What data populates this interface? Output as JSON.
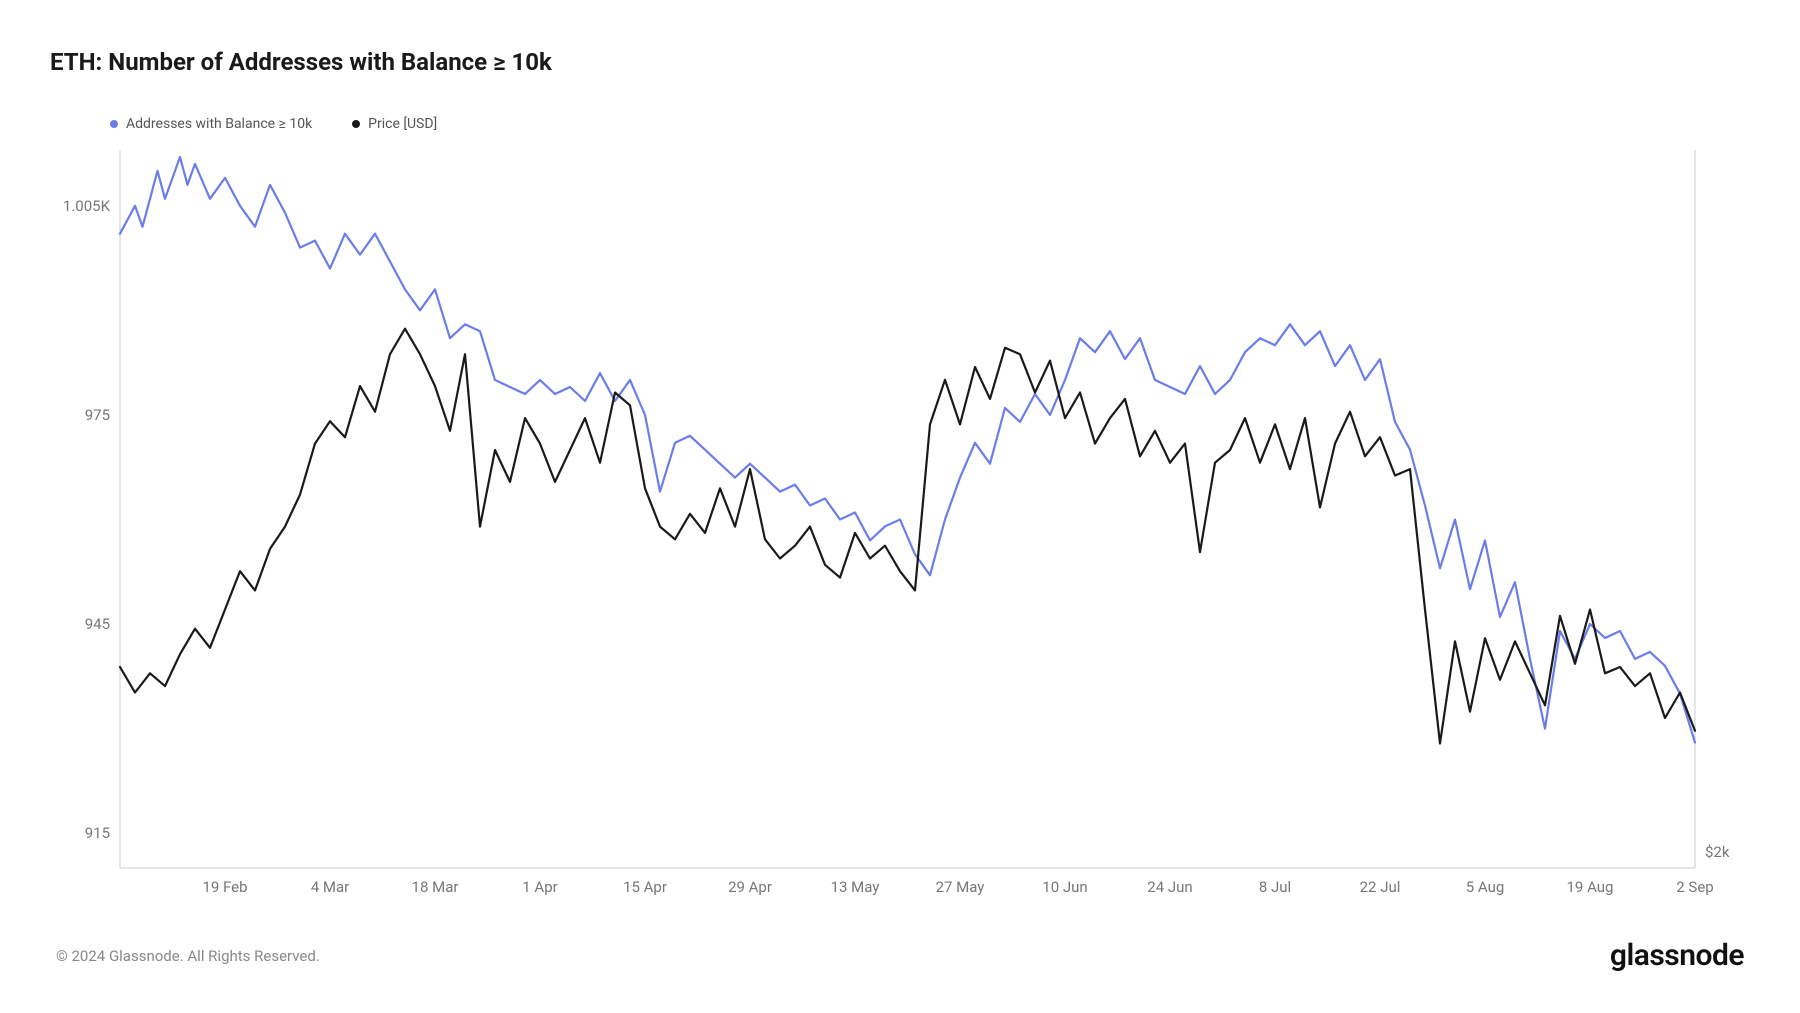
{
  "title": "ETH: Number of Addresses with Balance ≥ 10k",
  "legend": {
    "series1": {
      "label": "Addresses with Balance ≥ 10k",
      "color": "#6b7de8"
    },
    "series2": {
      "label": "Price [USD]",
      "color": "#1a1a1a"
    }
  },
  "chart": {
    "type": "line",
    "background_color": "#ffffff",
    "border_color": "#cccccc",
    "y_left": {
      "min": 910,
      "max": 1013,
      "ticks": [
        915,
        945,
        975,
        1005
      ],
      "tick_labels": [
        "915",
        "945",
        "975",
        "1.005K"
      ]
    },
    "y_right": {
      "min": 1950,
      "max": 4200,
      "ticks": [
        2000
      ],
      "tick_labels": [
        "$2k"
      ]
    },
    "x": {
      "min": 0,
      "max": 210,
      "ticks": [
        14,
        28,
        42,
        56,
        70,
        84,
        98,
        112,
        126,
        140,
        154,
        168,
        182,
        196,
        210
      ],
      "tick_labels": [
        "19 Feb",
        "4 Mar",
        "18 Mar",
        "1 Apr",
        "15 Apr",
        "29 Apr",
        "13 May",
        "27 May",
        "10 Jun",
        "24 Jun",
        "8 Jul",
        "22 Jul",
        "5 Aug",
        "19 Aug",
        "2 Sep"
      ]
    },
    "series1": {
      "color": "#6b7de8",
      "stroke_width": 2.2,
      "data": [
        [
          0,
          1001
        ],
        [
          2,
          1005
        ],
        [
          3,
          1002
        ],
        [
          5,
          1010
        ],
        [
          6,
          1006
        ],
        [
          8,
          1012
        ],
        [
          9,
          1008
        ],
        [
          10,
          1011
        ],
        [
          12,
          1006
        ],
        [
          14,
          1009
        ],
        [
          16,
          1005
        ],
        [
          18,
          1002
        ],
        [
          20,
          1008
        ],
        [
          22,
          1004
        ],
        [
          24,
          999
        ],
        [
          26,
          1000
        ],
        [
          28,
          996
        ],
        [
          30,
          1001
        ],
        [
          32,
          998
        ],
        [
          34,
          1001
        ],
        [
          36,
          997
        ],
        [
          38,
          993
        ],
        [
          40,
          990
        ],
        [
          42,
          993
        ],
        [
          44,
          986
        ],
        [
          46,
          988
        ],
        [
          48,
          987
        ],
        [
          50,
          980
        ],
        [
          52,
          979
        ],
        [
          54,
          978
        ],
        [
          56,
          980
        ],
        [
          58,
          978
        ],
        [
          60,
          979
        ],
        [
          62,
          977
        ],
        [
          64,
          981
        ],
        [
          66,
          977
        ],
        [
          68,
          980
        ],
        [
          70,
          975
        ],
        [
          72,
          964
        ],
        [
          74,
          971
        ],
        [
          76,
          972
        ],
        [
          78,
          970
        ],
        [
          80,
          968
        ],
        [
          82,
          966
        ],
        [
          84,
          968
        ],
        [
          86,
          966
        ],
        [
          88,
          964
        ],
        [
          90,
          965
        ],
        [
          92,
          962
        ],
        [
          94,
          963
        ],
        [
          96,
          960
        ],
        [
          98,
          961
        ],
        [
          100,
          957
        ],
        [
          102,
          959
        ],
        [
          104,
          960
        ],
        [
          106,
          955
        ],
        [
          108,
          952
        ],
        [
          110,
          960
        ],
        [
          112,
          966
        ],
        [
          114,
          971
        ],
        [
          116,
          968
        ],
        [
          118,
          976
        ],
        [
          120,
          974
        ],
        [
          122,
          978
        ],
        [
          124,
          975
        ],
        [
          126,
          980
        ],
        [
          128,
          986
        ],
        [
          130,
          984
        ],
        [
          132,
          987
        ],
        [
          134,
          983
        ],
        [
          136,
          986
        ],
        [
          138,
          980
        ],
        [
          140,
          979
        ],
        [
          142,
          978
        ],
        [
          144,
          982
        ],
        [
          146,
          978
        ],
        [
          148,
          980
        ],
        [
          150,
          984
        ],
        [
          152,
          986
        ],
        [
          154,
          985
        ],
        [
          156,
          988
        ],
        [
          158,
          985
        ],
        [
          160,
          987
        ],
        [
          162,
          982
        ],
        [
          164,
          985
        ],
        [
          166,
          980
        ],
        [
          168,
          983
        ],
        [
          170,
          974
        ],
        [
          172,
          970
        ],
        [
          174,
          962
        ],
        [
          176,
          953
        ],
        [
          178,
          960
        ],
        [
          180,
          950
        ],
        [
          182,
          957
        ],
        [
          184,
          946
        ],
        [
          186,
          951
        ],
        [
          188,
          940
        ],
        [
          190,
          930
        ],
        [
          192,
          944
        ],
        [
          194,
          940
        ],
        [
          196,
          945
        ],
        [
          198,
          943
        ],
        [
          200,
          944
        ],
        [
          202,
          940
        ],
        [
          204,
          941
        ],
        [
          206,
          939
        ],
        [
          208,
          935
        ],
        [
          210,
          928
        ]
      ]
    },
    "series2": {
      "color": "#1a1a1a",
      "stroke_width": 2.2,
      "data": [
        [
          0,
          2580
        ],
        [
          2,
          2500
        ],
        [
          4,
          2560
        ],
        [
          6,
          2520
        ],
        [
          8,
          2620
        ],
        [
          10,
          2700
        ],
        [
          12,
          2640
        ],
        [
          14,
          2760
        ],
        [
          16,
          2880
        ],
        [
          18,
          2820
        ],
        [
          20,
          2950
        ],
        [
          22,
          3020
        ],
        [
          24,
          3120
        ],
        [
          26,
          3280
        ],
        [
          28,
          3350
        ],
        [
          30,
          3300
        ],
        [
          32,
          3460
        ],
        [
          34,
          3380
        ],
        [
          36,
          3560
        ],
        [
          38,
          3640
        ],
        [
          40,
          3560
        ],
        [
          42,
          3460
        ],
        [
          44,
          3320
        ],
        [
          46,
          3560
        ],
        [
          48,
          3020
        ],
        [
          50,
          3260
        ],
        [
          52,
          3160
        ],
        [
          54,
          3360
        ],
        [
          56,
          3280
        ],
        [
          58,
          3160
        ],
        [
          60,
          3260
        ],
        [
          62,
          3360
        ],
        [
          64,
          3220
        ],
        [
          66,
          3440
        ],
        [
          68,
          3400
        ],
        [
          70,
          3140
        ],
        [
          72,
          3020
        ],
        [
          74,
          2980
        ],
        [
          76,
          3060
        ],
        [
          78,
          3000
        ],
        [
          80,
          3140
        ],
        [
          82,
          3020
        ],
        [
          84,
          3200
        ],
        [
          86,
          2980
        ],
        [
          88,
          2920
        ],
        [
          90,
          2960
        ],
        [
          92,
          3020
        ],
        [
          94,
          2900
        ],
        [
          96,
          2860
        ],
        [
          98,
          3000
        ],
        [
          100,
          2920
        ],
        [
          102,
          2960
        ],
        [
          104,
          2880
        ],
        [
          106,
          2820
        ],
        [
          108,
          3340
        ],
        [
          110,
          3480
        ],
        [
          112,
          3340
        ],
        [
          114,
          3520
        ],
        [
          116,
          3420
        ],
        [
          118,
          3580
        ],
        [
          120,
          3560
        ],
        [
          122,
          3440
        ],
        [
          124,
          3540
        ],
        [
          126,
          3360
        ],
        [
          128,
          3440
        ],
        [
          130,
          3280
        ],
        [
          132,
          3360
        ],
        [
          134,
          3420
        ],
        [
          136,
          3240
        ],
        [
          138,
          3320
        ],
        [
          140,
          3220
        ],
        [
          142,
          3280
        ],
        [
          144,
          2940
        ],
        [
          146,
          3220
        ],
        [
          148,
          3260
        ],
        [
          150,
          3360
        ],
        [
          152,
          3220
        ],
        [
          154,
          3340
        ],
        [
          156,
          3200
        ],
        [
          158,
          3360
        ],
        [
          160,
          3080
        ],
        [
          162,
          3280
        ],
        [
          164,
          3380
        ],
        [
          166,
          3240
        ],
        [
          168,
          3300
        ],
        [
          170,
          3180
        ],
        [
          172,
          3200
        ],
        [
          174,
          2760
        ],
        [
          176,
          2340
        ],
        [
          178,
          2660
        ],
        [
          180,
          2440
        ],
        [
          182,
          2670
        ],
        [
          184,
          2540
        ],
        [
          186,
          2660
        ],
        [
          188,
          2560
        ],
        [
          190,
          2460
        ],
        [
          192,
          2740
        ],
        [
          194,
          2590
        ],
        [
          196,
          2760
        ],
        [
          198,
          2560
        ],
        [
          200,
          2580
        ],
        [
          202,
          2520
        ],
        [
          204,
          2560
        ],
        [
          206,
          2420
        ],
        [
          208,
          2500
        ],
        [
          210,
          2380
        ]
      ]
    }
  },
  "footer": {
    "copyright": "© 2024 Glassnode. All Rights Reserved.",
    "brand": "glassnode"
  }
}
